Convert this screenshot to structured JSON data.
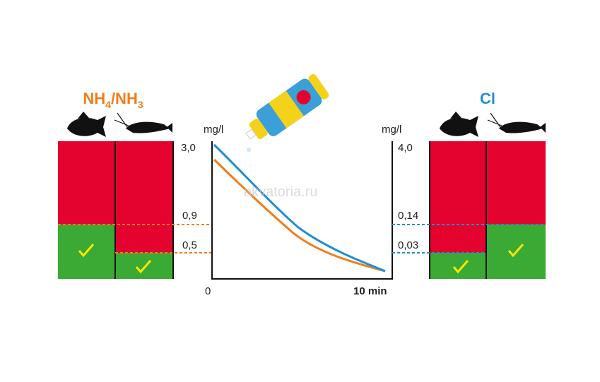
{
  "left_panel": {
    "title": {
      "main": "NH",
      "sub1": "4",
      "sep": "/NH",
      "sub2": "3"
    },
    "levels": [
      "0,9",
      "0,5"
    ]
  },
  "chart": {
    "y_unit_left": "mg/l",
    "y_max_left": "3,0",
    "y_unit_right": "mg/l",
    "y_max_right": "4,0",
    "x_start": "0",
    "x_end": "10 min"
  },
  "right_panel": {
    "title": "Cl",
    "levels": [
      "0,14",
      "0,03"
    ]
  },
  "watermark": "akvatoria.ru"
}
